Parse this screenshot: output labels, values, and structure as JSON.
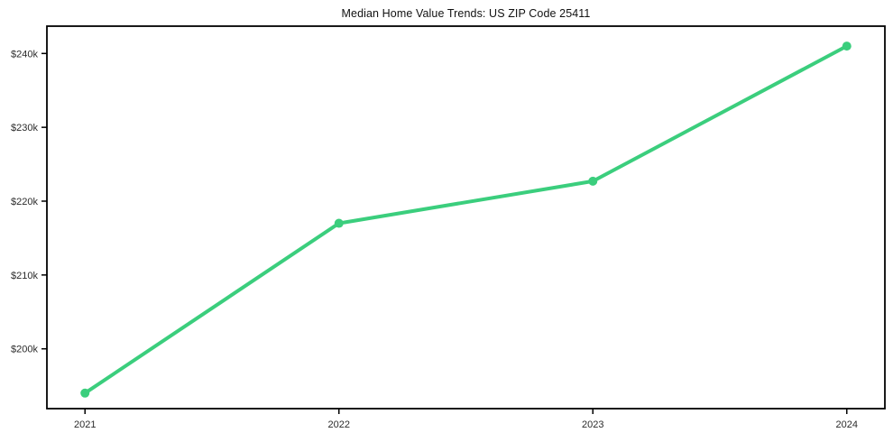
{
  "chart_data": {
    "type": "line",
    "title": "Median Home Value Trends: US ZIP Code 25411",
    "categories": [
      "2021",
      "2022",
      "2023",
      "2024"
    ],
    "values": [
      194000,
      217000,
      222700,
      241000
    ],
    "value_labels": [
      "$194k",
      "$217k",
      "$222.7k",
      "$241k"
    ],
    "ytick_values": [
      200000,
      210000,
      220000,
      230000,
      240000
    ],
    "ytick_labels": [
      "$200k",
      "$210k",
      "$220k",
      "$230k",
      "$240k"
    ],
    "ylim": [
      191900,
      243700
    ],
    "xlabel": "",
    "ylabel": "",
    "grid": false,
    "legend": "none",
    "marker": "circle",
    "line_color": "#3bce7d",
    "axis_color": "#000000",
    "tick_text_color": "#2b2b2b",
    "background_color": "#ffffff"
  }
}
